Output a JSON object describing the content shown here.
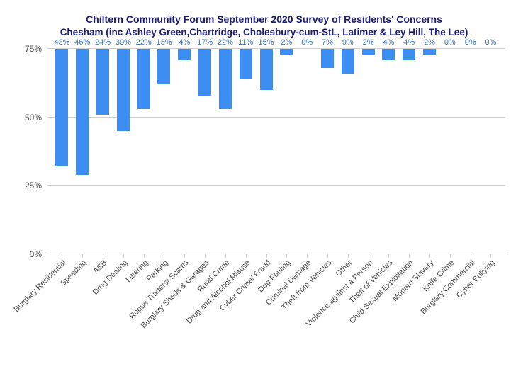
{
  "chart": {
    "type": "bar",
    "title_line1": "Chiltern Community Forum September 2020 Survey of Residents' Concerns",
    "title_line2": "Chesham (inc Ashley Green,Chartridge, Cholesbury-cum-StL, Latimer & Ley Hill, The Lee)",
    "title_color": "#1a1a7a",
    "title_fontsize_line1": 14,
    "title_fontsize_line2": 13.5,
    "bar_color": "#3d8ef2",
    "bar_label_color": "#3b6fb5",
    "background_color": "#ffffff",
    "grid_color": "#cfcfcf",
    "axis_label_color": "#4a4a4a",
    "label_fontsize": 11,
    "ytick_labels": [
      "0%",
      "25%",
      "50%",
      "75%"
    ],
    "ytick_values": [
      0,
      25,
      50,
      75
    ],
    "ylim": [
      0,
      75
    ],
    "categories": [
      "Burglary Residential",
      "Speeding",
      "ASB",
      "Drug Dealing",
      "Littering",
      "Parking",
      "Rogue Traders/ Scams",
      "Burglary Sheds & Garages",
      "Rural Crime",
      "Drug and Alcohol Misuse",
      "Cyber Crime/ Fraud",
      "Dog Fouling",
      "Criminal Damage",
      "Theft from Vehicles",
      "Other",
      "Violence against a Person",
      "Theft of Vehicles",
      "Child Sexual Exploitation",
      "Modern Slavery",
      "Knife Crime",
      "Burglary Commercial",
      "Cyber Bullying"
    ],
    "values": [
      43,
      46,
      24,
      30,
      22,
      13,
      4,
      17,
      22,
      11,
      15,
      2,
      0,
      7,
      9,
      2,
      4,
      4,
      2,
      0,
      0,
      0
    ],
    "value_labels": [
      "43%",
      "46%",
      "24%",
      "30%",
      "22%",
      "13%",
      "4%",
      "17%",
      "22%",
      "11%",
      "15%",
      "2%",
      "0%",
      "7%",
      "9%",
      "2%",
      "4%",
      "4%",
      "2%",
      "0%",
      "0%",
      "0%"
    ]
  }
}
